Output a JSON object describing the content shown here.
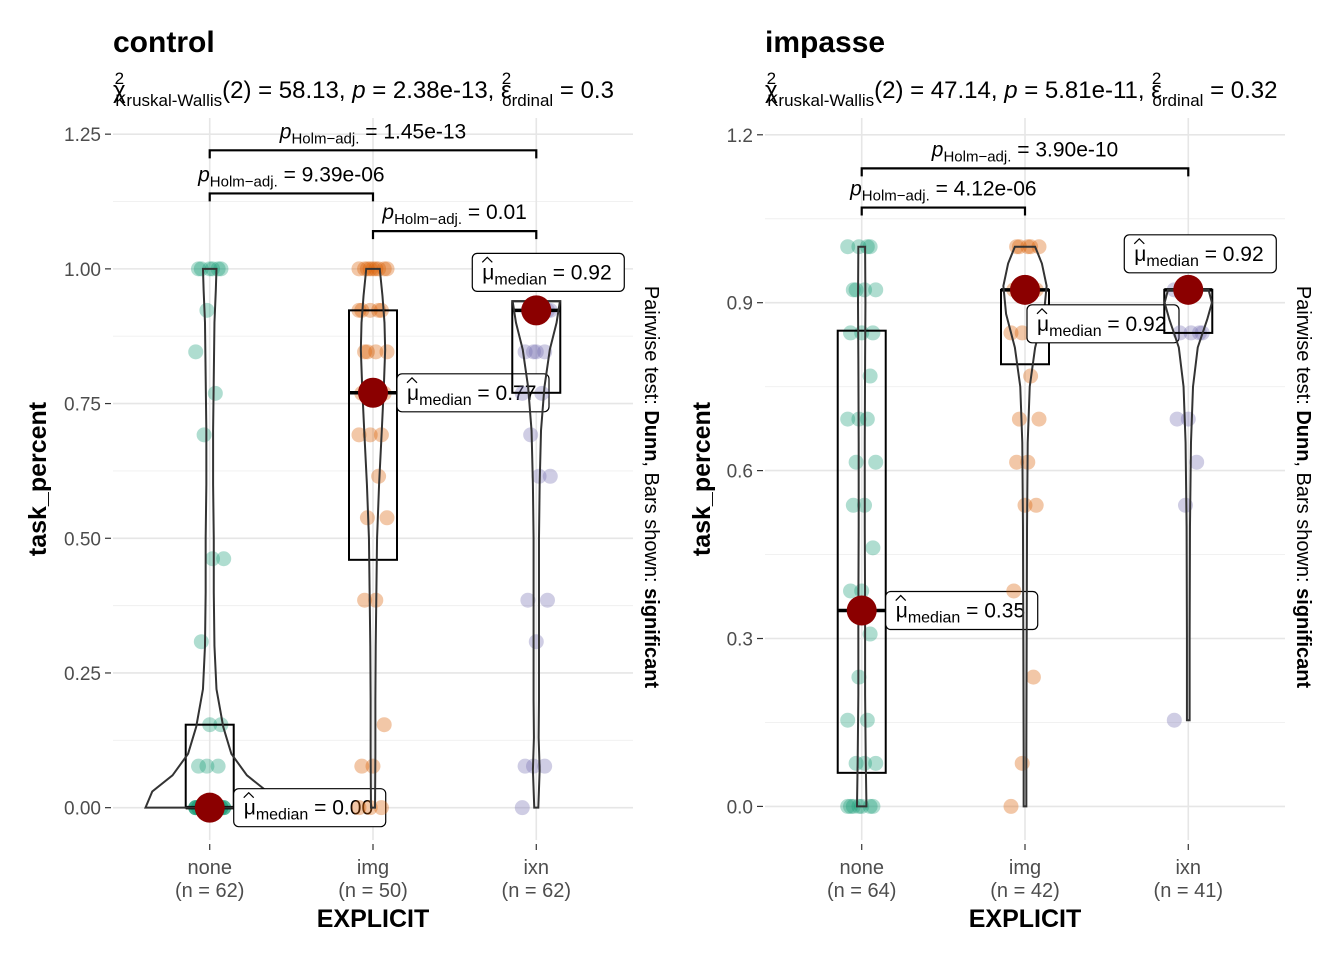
{
  "chart_data": [
    {
      "type": "violin-box",
      "title": "control",
      "stat": {
        "test": "Kruskal-Wallis",
        "df": "2",
        "statistic": "58.13",
        "p": "2.38e-13",
        "effect_value": "0.3",
        "sub": "Kruskal-Wallis",
        "eff_sub": "ordinal"
      },
      "xlabel": "EXPLICIT",
      "ylabel": "task_percent",
      "right_caption": {
        "prefix": "Pairwise test: ",
        "method": "Dunn",
        "middle": ", Bars shown: ",
        "shown": "significant"
      },
      "ylim": [
        -0.06,
        1.28
      ],
      "yticks": [
        0,
        0.25,
        0.5,
        0.75,
        1.0
      ],
      "ytick_labels": [
        "0.00",
        "0.25",
        "0.50",
        "0.75",
        "1.00",
        "1.25"
      ],
      "ytick_values": [
        0,
        0.25,
        0.5,
        0.75,
        1.0,
        1.25
      ],
      "categories": [
        "none",
        "img",
        "ixn"
      ],
      "n_labels": [
        "(n = 62)",
        "(n = 50)",
        "(n = 62)"
      ],
      "colors": [
        "#1b9e77",
        "#d95f02",
        "#7570b3"
      ],
      "groups": [
        {
          "name": "none",
          "q1": 0.0,
          "median": 0.0,
          "q3": 0.154,
          "min": 0.0,
          "max": 1.0,
          "median_label": "0.00",
          "points": [
            0,
            0,
            0,
            0,
            0,
            0,
            0,
            0,
            0,
            0,
            0,
            0,
            0,
            0,
            0,
            0,
            0,
            0,
            0,
            0,
            0,
            0,
            0,
            0,
            0,
            0,
            0,
            0,
            0,
            0,
            0,
            0,
            0,
            0,
            0.077,
            0.077,
            0.077,
            0.154,
            0.154,
            0.308,
            0.462,
            0.462,
            0.692,
            0.769,
            0.846,
            0.923,
            1,
            1,
            1,
            1,
            1,
            1
          ],
          "violin": [
            [
              0,
              0.95
            ],
            [
              0.03,
              0.85
            ],
            [
              0.06,
              0.55
            ],
            [
              0.1,
              0.32
            ],
            [
              0.15,
              0.2
            ],
            [
              0.22,
              0.1
            ],
            [
              0.3,
              0.07
            ],
            [
              0.4,
              0.06
            ],
            [
              0.5,
              0.06
            ],
            [
              0.6,
              0.05
            ],
            [
              0.7,
              0.05
            ],
            [
              0.8,
              0.06
            ],
            [
              0.9,
              0.07
            ],
            [
              0.96,
              0.09
            ],
            [
              1.0,
              0.1
            ]
          ]
        },
        {
          "name": "img",
          "q1": 0.46,
          "median": 0.77,
          "q3": 0.923,
          "min": 0.0,
          "max": 1.0,
          "median_label": "0.77",
          "points": [
            0,
            0,
            0,
            0.077,
            0.077,
            0.154,
            0.385,
            0.385,
            0.538,
            0.538,
            0.615,
            0.692,
            0.692,
            0.692,
            0.769,
            0.769,
            0.769,
            0.846,
            0.846,
            0.846,
            0.846,
            0.923,
            0.923,
            0.923,
            0.923,
            0.923,
            1,
            1,
            1,
            1,
            1,
            1,
            1,
            1,
            1
          ],
          "violin": [
            [
              0,
              0.03
            ],
            [
              0.1,
              0.035
            ],
            [
              0.2,
              0.035
            ],
            [
              0.3,
              0.04
            ],
            [
              0.4,
              0.05
            ],
            [
              0.5,
              0.06
            ],
            [
              0.6,
              0.09
            ],
            [
              0.7,
              0.13
            ],
            [
              0.78,
              0.16
            ],
            [
              0.85,
              0.18
            ],
            [
              0.9,
              0.17
            ],
            [
              0.95,
              0.14
            ],
            [
              1.0,
              0.1
            ]
          ]
        },
        {
          "name": "ixn",
          "q1": 0.77,
          "median": 0.923,
          "q3": 0.94,
          "min": 0.0,
          "max": 0.94,
          "median_label": "0.92",
          "points": [
            0,
            0.077,
            0.077,
            0.077,
            0.308,
            0.385,
            0.385,
            0.615,
            0.615,
            0.692,
            0.769,
            0.769,
            0.846,
            0.846,
            0.846,
            0.846,
            0.923,
            0.923,
            0.923,
            0.923,
            0.923,
            0.923
          ],
          "violin": [
            [
              0,
              0.03
            ],
            [
              0.07,
              0.05
            ],
            [
              0.13,
              0.035
            ],
            [
              0.2,
              0.04
            ],
            [
              0.3,
              0.04
            ],
            [
              0.4,
              0.04
            ],
            [
              0.5,
              0.04
            ],
            [
              0.6,
              0.05
            ],
            [
              0.7,
              0.07
            ],
            [
              0.78,
              0.12
            ],
            [
              0.85,
              0.2
            ],
            [
              0.9,
              0.3
            ],
            [
              0.94,
              0.35
            ]
          ]
        }
      ],
      "pairwise": [
        {
          "from": 0,
          "to": 2,
          "level": 1.22,
          "label": "1.45e-13"
        },
        {
          "from": 0,
          "to": 1,
          "level": 1.14,
          "label": "9.39e-06"
        },
        {
          "from": 1,
          "to": 2,
          "level": 1.07,
          "label": "0.01"
        }
      ]
    },
    {
      "type": "violin-box",
      "title": "impasse",
      "stat": {
        "test": "Kruskal-Wallis",
        "df": "2",
        "statistic": "47.14",
        "p": "5.81e-11",
        "effect_value": "0.32",
        "sub": "Kruskal-Wallis",
        "eff_sub": "ordinal"
      },
      "xlabel": "EXPLICIT",
      "ylabel": "task_percent",
      "right_caption": {
        "prefix": "Pairwise test: ",
        "method": "Dunn",
        "middle": ", Bars shown: ",
        "shown": "significant"
      },
      "ylim": [
        -0.06,
        1.23
      ],
      "ytick_labels": [
        "0.0",
        "0.3",
        "0.6",
        "0.9",
        "1.2"
      ],
      "ytick_values": [
        0,
        0.3,
        0.6,
        0.9,
        1.2
      ],
      "categories": [
        "none",
        "img",
        "ixn"
      ],
      "n_labels": [
        "(n = 64)",
        "(n = 42)",
        "(n = 41)"
      ],
      "colors": [
        "#1b9e77",
        "#d95f02",
        "#7570b3"
      ],
      "groups": [
        {
          "name": "none",
          "q1": 0.06,
          "median": 0.35,
          "q3": 0.85,
          "min": 0.0,
          "max": 1.0,
          "median_label": "0.35",
          "points": [
            0,
            0,
            0,
            0,
            0,
            0,
            0,
            0.077,
            0.077,
            0.077,
            0.154,
            0.154,
            0.231,
            0.308,
            0.385,
            0.385,
            0.462,
            0.538,
            0.538,
            0.615,
            0.615,
            0.692,
            0.692,
            0.692,
            0.769,
            0.846,
            0.846,
            0.846,
            0.923,
            0.923,
            0.923,
            0.923,
            1,
            1,
            1,
            1
          ],
          "violin": [
            [
              0,
              0.07
            ],
            [
              0.08,
              0.06
            ],
            [
              0.2,
              0.05
            ],
            [
              0.35,
              0.05
            ],
            [
              0.5,
              0.045
            ],
            [
              0.65,
              0.045
            ],
            [
              0.8,
              0.05
            ],
            [
              0.9,
              0.055
            ],
            [
              1.0,
              0.05
            ]
          ]
        },
        {
          "name": "img",
          "q1": 0.79,
          "median": 0.923,
          "q3": 0.923,
          "min": 0.0,
          "max": 1.0,
          "median_label": "0.92",
          "points": [
            0,
            0.077,
            0.231,
            0.385,
            0.538,
            0.538,
            0.615,
            0.615,
            0.692,
            0.692,
            0.769,
            0.846,
            0.846,
            0.923,
            0.923,
            0.923,
            0.923,
            1,
            1,
            1,
            1,
            1
          ],
          "violin": [
            [
              0,
              0.02
            ],
            [
              0.1,
              0.02
            ],
            [
              0.3,
              0.025
            ],
            [
              0.5,
              0.03
            ],
            [
              0.65,
              0.04
            ],
            [
              0.75,
              0.07
            ],
            [
              0.82,
              0.15
            ],
            [
              0.88,
              0.28
            ],
            [
              0.93,
              0.32
            ],
            [
              0.97,
              0.25
            ],
            [
              1.0,
              0.15
            ]
          ]
        },
        {
          "name": "ixn",
          "q1": 0.846,
          "median": 0.923,
          "q3": 0.923,
          "min": 0.154,
          "max": 0.923,
          "median_label": "0.92",
          "points": [
            0.154,
            0.538,
            0.615,
            0.692,
            0.692,
            0.846,
            0.846,
            0.846,
            0.846,
            0.923,
            0.923,
            0.923,
            0.923
          ],
          "violin": [
            [
              0.154,
              0.02
            ],
            [
              0.3,
              0.02
            ],
            [
              0.5,
              0.025
            ],
            [
              0.65,
              0.04
            ],
            [
              0.75,
              0.07
            ],
            [
              0.82,
              0.14
            ],
            [
              0.87,
              0.28
            ],
            [
              0.9,
              0.35
            ],
            [
              0.923,
              0.3
            ]
          ]
        }
      ],
      "pairwise": [
        {
          "from": 0,
          "to": 2,
          "level": 1.14,
          "label": "3.90e-10"
        },
        {
          "from": 0,
          "to": 1,
          "level": 1.07,
          "label": "4.12e-06"
        }
      ]
    }
  ],
  "common": {
    "mu_symbol": "μ",
    "median_sub": "median",
    "p_sym": "p",
    "holm_sub": "Holm−adj.",
    "chi_sym": "χ",
    "eps_sym": "ε",
    "sup2": "2",
    "eq": " = ",
    "comma": ", "
  }
}
